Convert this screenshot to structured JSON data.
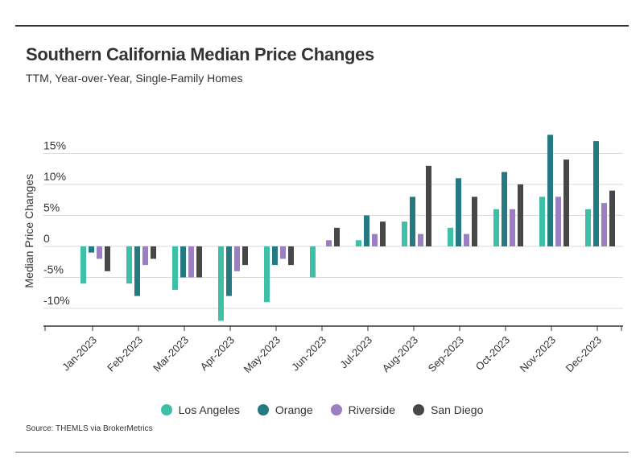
{
  "title": "Southern California Median Price Changes",
  "subtitle": "TTM, Year-over-Year, Single-Family Homes",
  "source": "Source:  THEMLS via BrokerMetrics",
  "chart_data": {
    "type": "bar",
    "ylabel": "Median Price Changes",
    "xlabel": "",
    "ylim": [
      -12,
      18
    ],
    "yticks": [
      -10,
      -5,
      0,
      5,
      10,
      15
    ],
    "ytick_labels": [
      "-10%",
      "-5%",
      "0",
      "5%",
      "10%",
      "15%"
    ],
    "grid": "horizontal",
    "legend_position": "bottom",
    "categories": [
      "Jan-2023",
      "Feb-2023",
      "Mar-2023",
      "Apr-2023",
      "May-2023",
      "Jun-2023",
      "Jul-2023",
      "Aug-2023",
      "Sep-2023",
      "Oct-2023",
      "Nov-2023",
      "Dec-2023"
    ],
    "series": [
      {
        "name": "Los Angeles",
        "color": "#3dbfa8",
        "values": [
          -6,
          -6,
          -7,
          -12,
          -9,
          -5,
          1,
          4,
          3,
          6,
          8,
          6
        ]
      },
      {
        "name": "Orange",
        "color": "#247a80",
        "values": [
          -1,
          -8,
          -5,
          -8,
          -3,
          0,
          5,
          8,
          11,
          12,
          18,
          17
        ]
      },
      {
        "name": "Riverside",
        "color": "#9b7fc2",
        "values": [
          -2,
          -3,
          -5,
          -4,
          -2,
          1,
          2,
          2,
          2,
          6,
          8,
          7
        ]
      },
      {
        "name": "San Diego",
        "color": "#474747",
        "values": [
          -4,
          -2,
          -5,
          -3,
          -3,
          3,
          4,
          13,
          8,
          10,
          14,
          9
        ]
      }
    ]
  }
}
